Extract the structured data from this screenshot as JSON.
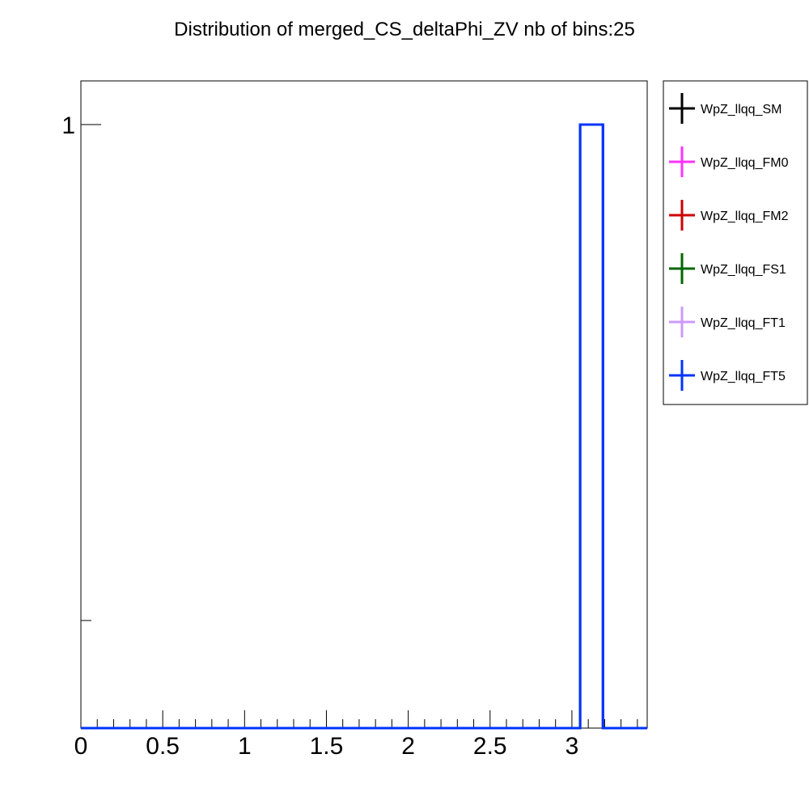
{
  "chart_data": {
    "type": "line",
    "title": "Distribution of merged_CS_deltaPhi_ZV nb of bins:25",
    "xlabel": "",
    "ylabel": "",
    "xlim": [
      0,
      3.46
    ],
    "ylog": true,
    "ylim_note": "log scale",
    "x_ticks": [
      {
        "value": 0,
        "label": "0"
      },
      {
        "value": 0.5,
        "label": "0.5"
      },
      {
        "value": 1,
        "label": "1"
      },
      {
        "value": 1.5,
        "label": "1.5"
      },
      {
        "value": 2,
        "label": "2"
      },
      {
        "value": 2.5,
        "label": "2.5"
      },
      {
        "value": 3,
        "label": "3"
      }
    ],
    "y_ticks": [
      {
        "value": 1,
        "label": "1"
      }
    ],
    "grid": false,
    "legend_position": "right, outside plot (top)",
    "bin_edges_note": "non-zero bin",
    "series": [
      {
        "name": "WpZ_llqq_SM",
        "color": "#000000",
        "bins": [
          {
            "x0": 3.05,
            "x1": 3.19,
            "y": 1
          }
        ]
      },
      {
        "name": "WpZ_llqq_FM0",
        "color": "#ff33ff",
        "bins": [
          {
            "x0": 3.05,
            "x1": 3.19,
            "y": 1
          }
        ]
      },
      {
        "name": "WpZ_llqq_FM2",
        "color": "#cc0000",
        "bins": [
          {
            "x0": 3.05,
            "x1": 3.19,
            "y": 1
          }
        ]
      },
      {
        "name": "WpZ_llqq_FS1",
        "color": "#006600",
        "bins": [
          {
            "x0": 3.05,
            "x1": 3.19,
            "y": 1
          }
        ]
      },
      {
        "name": "WpZ_llqq_FT1",
        "color": "#cc99ff",
        "bins": [
          {
            "x0": 3.05,
            "x1": 3.19,
            "y": 1
          }
        ]
      },
      {
        "name": "WpZ_llqq_FT5",
        "color": "#0033ff",
        "bins": [
          {
            "x0": 3.05,
            "x1": 3.19,
            "y": 1
          }
        ]
      }
    ]
  }
}
